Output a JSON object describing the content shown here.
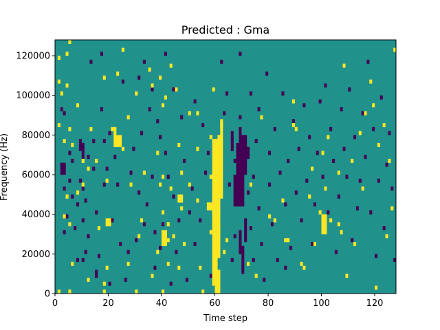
{
  "chart_data": {
    "type": "heatmap",
    "title": "Predicted : Gma",
    "xlabel": "Time step",
    "ylabel": "Frequency (Hz)",
    "xlim": [
      0,
      128
    ],
    "ylim": [
      0,
      128000
    ],
    "x_ticks": [
      0,
      20,
      40,
      60,
      80,
      100,
      120
    ],
    "y_ticks": [
      0,
      20000,
      40000,
      60000,
      80000,
      100000,
      120000
    ],
    "x_tick_labels": [
      "0",
      "20",
      "40",
      "60",
      "80",
      "100",
      "120"
    ],
    "y_tick_labels": [
      "0",
      "20000",
      "40000",
      "60000",
      "80000",
      "100000",
      "120000"
    ],
    "grid": false,
    "colormap": "viridis",
    "background_color": "#21918c",
    "high_color": "#fde725",
    "low_color": "#440154",
    "n_time_steps": 128,
    "n_frequency_bins": 64,
    "bin_height_hz": 2000,
    "high_cells": [
      [
        1,
        0
      ],
      [
        1,
        42
      ],
      [
        1,
        53
      ],
      [
        1,
        59
      ],
      [
        2,
        50
      ],
      [
        3,
        19
      ],
      [
        3,
        38
      ],
      [
        4,
        24
      ],
      [
        4,
        52
      ],
      [
        4,
        60
      ],
      [
        5,
        0
      ],
      [
        5,
        17
      ],
      [
        5,
        41
      ],
      [
        5,
        63
      ],
      [
        6,
        7
      ],
      [
        6,
        37
      ],
      [
        8,
        25
      ],
      [
        8,
        47
      ],
      [
        10,
        33
      ],
      [
        10,
        27
      ],
      [
        12,
        31
      ],
      [
        12,
        3
      ],
      [
        13,
        41
      ],
      [
        15,
        33
      ],
      [
        16,
        16
      ],
      [
        18,
        0
      ],
      [
        18,
        2
      ],
      [
        18,
        54
      ],
      [
        19,
        28
      ],
      [
        19,
        6
      ],
      [
        21,
        41
      ],
      [
        22,
        40
      ],
      [
        22,
        41
      ],
      [
        23,
        55
      ],
      [
        25,
        36
      ],
      [
        25,
        61
      ],
      [
        27,
        7
      ],
      [
        27,
        44
      ],
      [
        28,
        27
      ],
      [
        30,
        0
      ],
      [
        30,
        50
      ],
      [
        31,
        14
      ],
      [
        32,
        18
      ],
      [
        33,
        30
      ],
      [
        35,
        56
      ],
      [
        36,
        52
      ],
      [
        36,
        4
      ],
      [
        38,
        35
      ],
      [
        38,
        10
      ],
      [
        39,
        27
      ],
      [
        39,
        54
      ],
      [
        40,
        0
      ],
      [
        40,
        20
      ],
      [
        40,
        47
      ],
      [
        40,
        29
      ],
      [
        41,
        49
      ],
      [
        42,
        17
      ],
      [
        42,
        7
      ],
      [
        42,
        13
      ],
      [
        43,
        26
      ],
      [
        43,
        57
      ],
      [
        44,
        14
      ],
      [
        45,
        51
      ],
      [
        46,
        6
      ],
      [
        46,
        37
      ],
      [
        47,
        30
      ],
      [
        47,
        21
      ],
      [
        48,
        12
      ],
      [
        50,
        45
      ],
      [
        50,
        27
      ],
      [
        53,
        36
      ],
      [
        53,
        23
      ],
      [
        53,
        45
      ],
      [
        54,
        6
      ],
      [
        55,
        0
      ],
      [
        58,
        15
      ],
      [
        58,
        39
      ],
      [
        58,
        29
      ],
      [
        59,
        51
      ],
      [
        60,
        7
      ],
      [
        60,
        38
      ],
      [
        61,
        16
      ],
      [
        62,
        42
      ],
      [
        63,
        10
      ],
      [
        64,
        13
      ],
      [
        72,
        7
      ],
      [
        73,
        27
      ],
      [
        75,
        4
      ],
      [
        77,
        44
      ],
      [
        80,
        19
      ],
      [
        82,
        18
      ],
      [
        85,
        23
      ],
      [
        86,
        13
      ],
      [
        87,
        13
      ],
      [
        89,
        42
      ],
      [
        89,
        48
      ],
      [
        90,
        41
      ],
      [
        92,
        7
      ],
      [
        93,
        6
      ],
      [
        95,
        24
      ],
      [
        96,
        31
      ],
      [
        97,
        12
      ],
      [
        99,
        20
      ],
      [
        100,
        35
      ],
      [
        101,
        26
      ],
      [
        102,
        39
      ],
      [
        103,
        18
      ],
      [
        106,
        30
      ],
      [
        106,
        17
      ],
      [
        107,
        15
      ],
      [
        108,
        57
      ],
      [
        109,
        4
      ],
      [
        111,
        33
      ],
      [
        112,
        12
      ],
      [
        114,
        40
      ],
      [
        115,
        26
      ],
      [
        116,
        45
      ],
      [
        118,
        53
      ],
      [
        119,
        47
      ],
      [
        120,
        1
      ],
      [
        121,
        37
      ],
      [
        123,
        42
      ],
      [
        124,
        14
      ],
      [
        125,
        33
      ],
      [
        126,
        21
      ],
      [
        127,
        61
      ]
    ],
    "high_bands": [
      [
        [
          59,
          61,
          2,
          39
        ]
      ],
      [
        [
          60,
          62,
          0,
          2
        ],
        [
          59,
          62,
          20,
          24
        ],
        [
          60,
          62,
          9,
          16
        ],
        [
          61,
          62,
          2,
          6
        ]
      ],
      [
        [
          61,
          63,
          24,
          40
        ],
        [
          60,
          62,
          16,
          22
        ],
        [
          62,
          63,
          40,
          44
        ],
        [
          61,
          62,
          13,
          18
        ]
      ],
      [
        [
          22,
          25,
          37,
          40
        ]
      ],
      [
        [
          46,
          48,
          23,
          25
        ]
      ],
      [
        [
          19,
          21,
          17,
          19
        ],
        [
          100,
          102,
          15,
          20
        ]
      ],
      [
        [
          40,
          42,
          12,
          16
        ],
        [
          57,
          59,
          21,
          23
        ]
      ]
    ],
    "low_cells": [
      [
        2,
        32
      ],
      [
        2,
        46
      ],
      [
        3,
        26
      ],
      [
        3,
        45
      ],
      [
        3,
        15
      ],
      [
        4,
        19
      ],
      [
        5,
        28
      ],
      [
        5,
        35
      ],
      [
        6,
        33
      ],
      [
        6,
        24
      ],
      [
        7,
        16
      ],
      [
        8,
        22
      ],
      [
        8,
        8
      ],
      [
        9,
        28
      ],
      [
        9,
        36
      ],
      [
        10,
        26
      ],
      [
        10,
        18
      ],
      [
        10,
        8
      ],
      [
        11,
        10
      ],
      [
        11,
        23
      ],
      [
        12,
        14
      ],
      [
        12,
        34
      ],
      [
        13,
        58
      ],
      [
        14,
        31
      ],
      [
        14,
        38
      ],
      [
        15,
        20
      ],
      [
        15,
        4
      ],
      [
        15,
        5
      ],
      [
        16,
        9
      ],
      [
        17,
        46
      ],
      [
        17,
        60
      ],
      [
        18,
        27
      ],
      [
        18,
        38
      ],
      [
        19,
        31
      ],
      [
        20,
        40
      ],
      [
        20,
        2
      ],
      [
        21,
        18
      ],
      [
        22,
        34
      ],
      [
        23,
        27
      ],
      [
        24,
        37
      ],
      [
        24,
        12
      ],
      [
        25,
        53
      ],
      [
        26,
        3
      ],
      [
        27,
        10
      ],
      [
        28,
        30
      ],
      [
        29,
        36
      ],
      [
        30,
        13
      ],
      [
        31,
        25
      ],
      [
        31,
        54
      ],
      [
        32,
        40
      ],
      [
        33,
        17
      ],
      [
        33,
        58
      ],
      [
        34,
        22
      ],
      [
        35,
        46
      ],
      [
        36,
        29
      ],
      [
        36,
        51
      ],
      [
        37,
        15
      ],
      [
        37,
        6
      ],
      [
        38,
        43
      ],
      [
        39,
        11
      ],
      [
        39,
        39
      ],
      [
        40,
        17
      ],
      [
        41,
        60
      ],
      [
        41,
        35
      ],
      [
        42,
        29
      ],
      [
        43,
        2
      ],
      [
        44,
        24
      ],
      [
        44,
        51
      ],
      [
        45,
        10
      ],
      [
        46,
        18
      ],
      [
        47,
        44
      ],
      [
        48,
        33
      ],
      [
        49,
        3
      ],
      [
        50,
        20
      ],
      [
        51,
        26
      ],
      [
        52,
        48
      ],
      [
        52,
        12
      ],
      [
        54,
        18
      ],
      [
        55,
        42
      ],
      [
        56,
        30
      ],
      [
        57,
        35
      ],
      [
        58,
        4
      ],
      [
        62,
        58
      ],
      [
        63,
        45
      ],
      [
        64,
        50
      ],
      [
        65,
        27
      ],
      [
        66,
        40
      ],
      [
        66,
        8
      ],
      [
        67,
        14
      ],
      [
        67,
        33
      ],
      [
        68,
        22
      ],
      [
        69,
        60
      ],
      [
        69,
        44
      ],
      [
        71,
        36
      ],
      [
        72,
        25
      ],
      [
        73,
        16
      ],
      [
        73,
        50
      ],
      [
        74,
        8
      ],
      [
        74,
        29
      ],
      [
        75,
        38
      ],
      [
        76,
        21
      ],
      [
        76,
        46
      ],
      [
        77,
        12
      ],
      [
        78,
        3
      ],
      [
        79,
        55
      ],
      [
        80,
        35
      ],
      [
        80,
        27
      ],
      [
        81,
        17
      ],
      [
        82,
        41
      ],
      [
        83,
        8
      ],
      [
        84,
        30
      ],
      [
        85,
        50
      ],
      [
        86,
        6
      ],
      [
        86,
        22
      ],
      [
        87,
        33
      ],
      [
        88,
        11
      ],
      [
        89,
        43
      ],
      [
        90,
        25
      ],
      [
        91,
        36
      ],
      [
        92,
        18
      ],
      [
        93,
        47
      ],
      [
        94,
        28
      ],
      [
        95,
        39
      ],
      [
        96,
        12
      ],
      [
        97,
        22
      ],
      [
        98,
        35
      ],
      [
        99,
        48
      ],
      [
        100,
        29
      ],
      [
        101,
        52
      ],
      [
        102,
        20
      ],
      [
        103,
        41
      ],
      [
        104,
        33
      ],
      [
        105,
        10
      ],
      [
        106,
        24
      ],
      [
        107,
        46
      ],
      [
        108,
        36
      ],
      [
        109,
        29
      ],
      [
        110,
        51
      ],
      [
        111,
        13
      ],
      [
        112,
        39
      ],
      [
        113,
        21
      ],
      [
        114,
        28
      ],
      [
        115,
        45
      ],
      [
        116,
        34
      ],
      [
        117,
        58
      ],
      [
        118,
        20
      ],
      [
        119,
        41
      ],
      [
        120,
        9
      ],
      [
        121,
        28
      ],
      [
        122,
        49
      ],
      [
        123,
        16
      ],
      [
        124,
        32
      ],
      [
        125,
        40
      ],
      [
        126,
        26
      ],
      [
        127,
        8
      ]
    ],
    "low_bands": [
      [
        [
          68,
          71,
          22,
          38
        ],
        [
          69,
          70,
          38,
          42
        ],
        [
          70,
          72,
          30,
          40
        ],
        [
          67,
          68,
          22,
          30
        ]
      ],
      [
        [
          70,
          71,
          5,
          12
        ],
        [
          71,
          72,
          13,
          19
        ],
        [
          66,
          67,
          36,
          40
        ]
      ],
      [
        [
          2,
          4,
          30,
          33
        ],
        [
          9,
          10,
          37,
          39
        ],
        [
          10,
          11,
          34,
          38
        ]
      ],
      [
        [
          69,
          70,
          10,
          16
        ],
        [
          72,
          73,
          34,
          37
        ]
      ]
    ]
  }
}
